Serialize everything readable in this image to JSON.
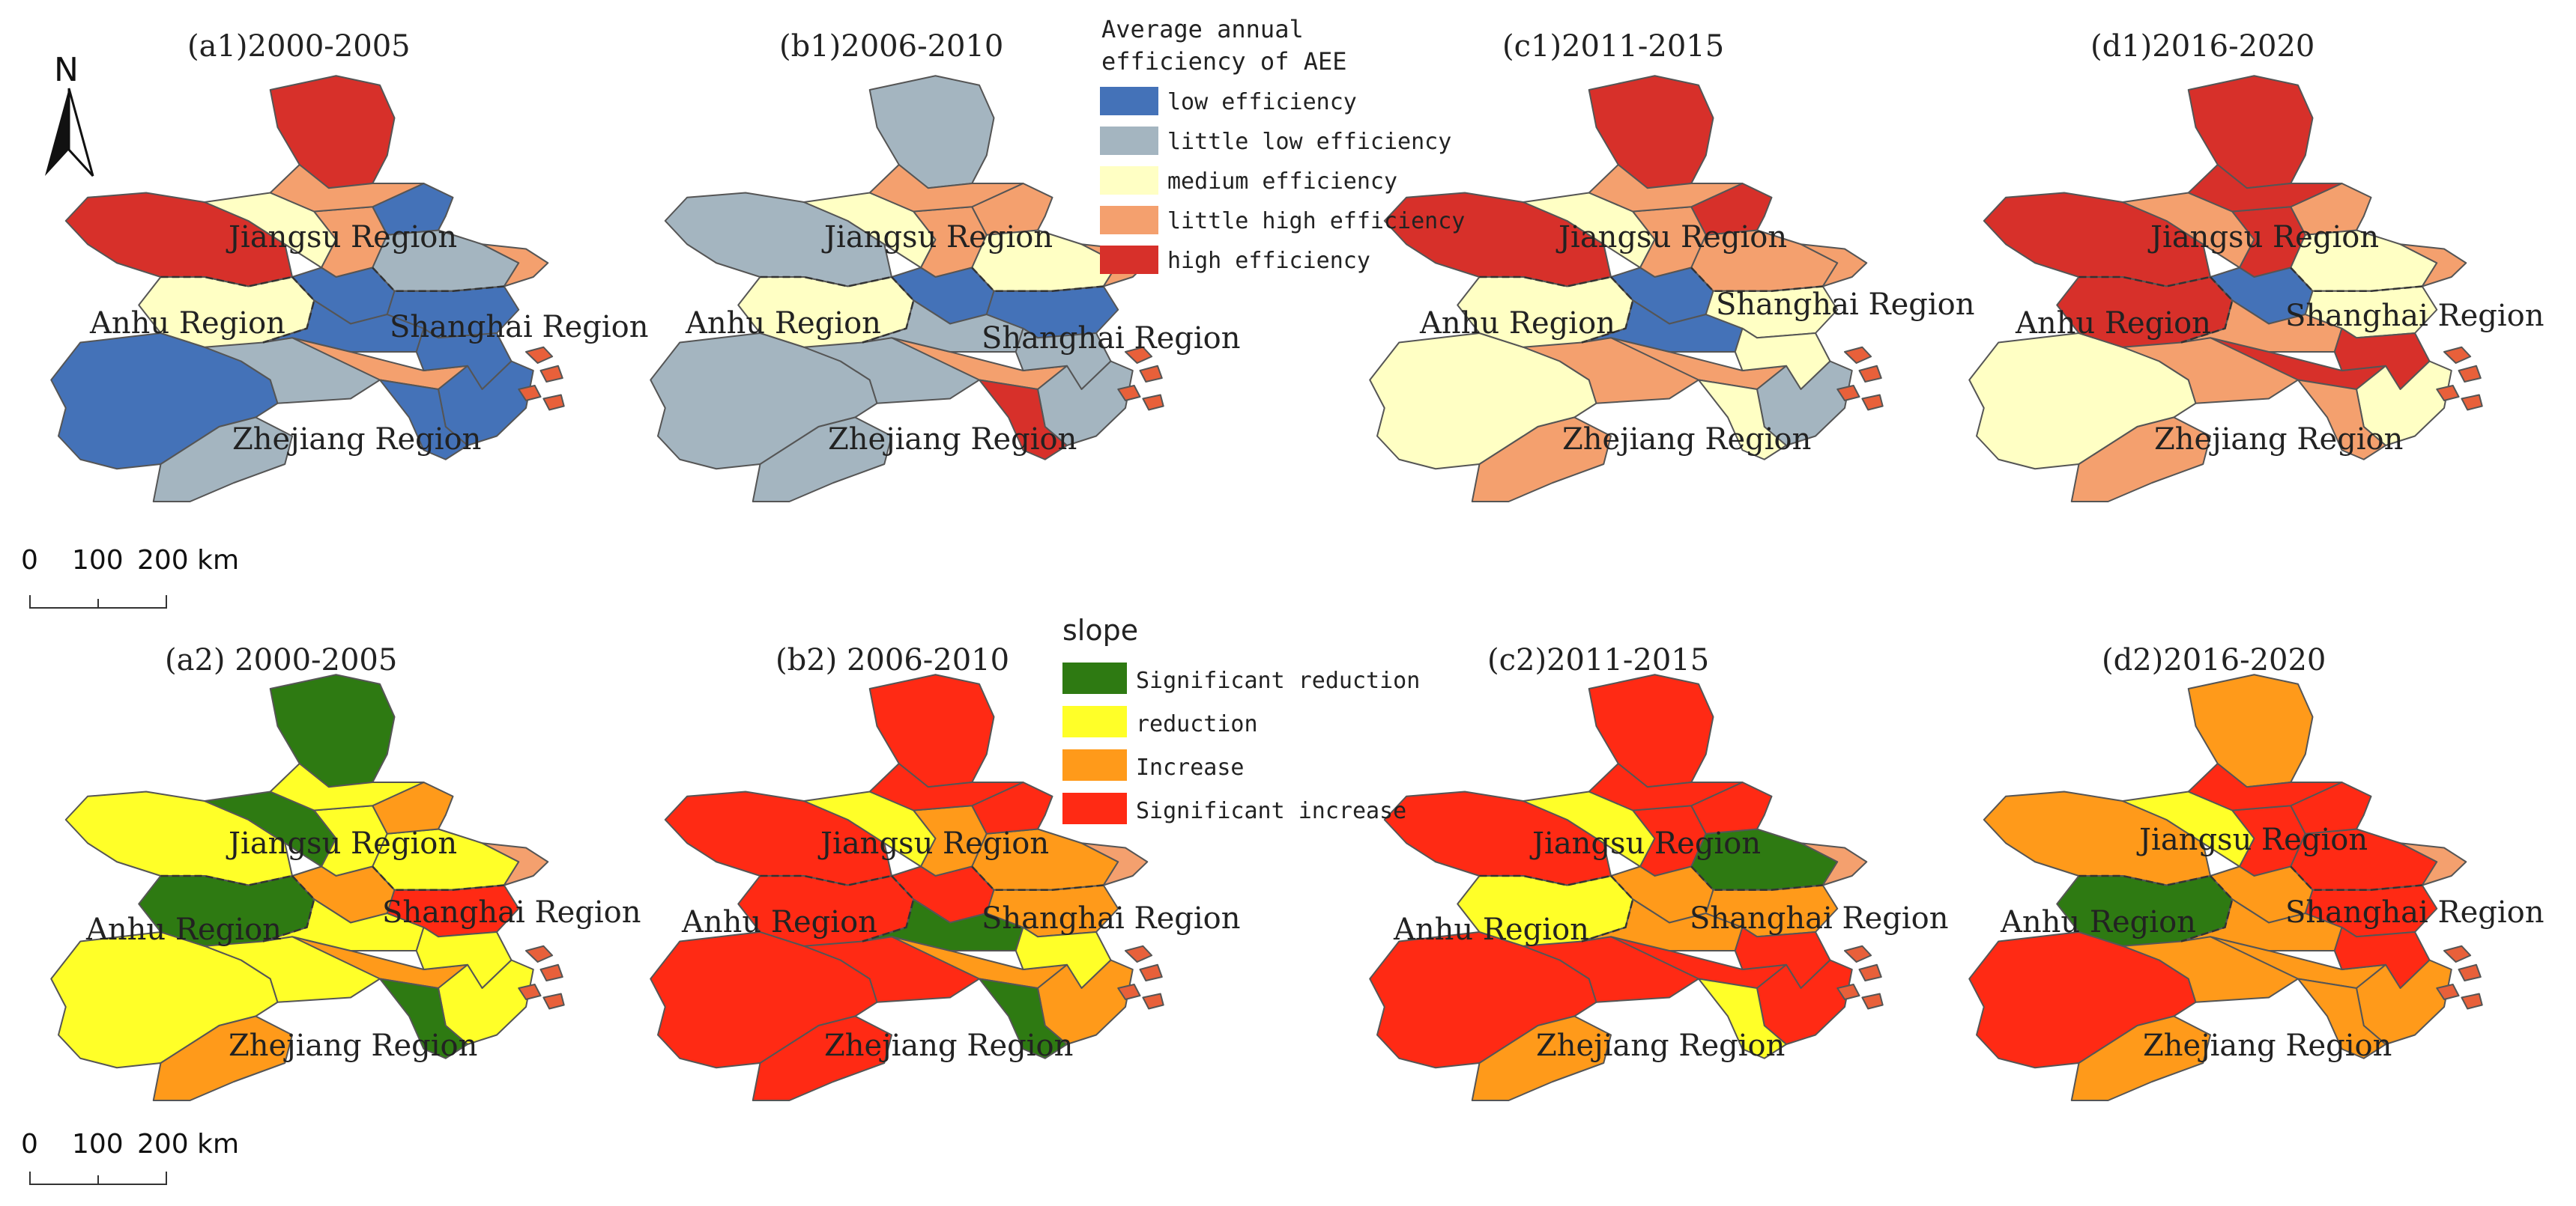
{
  "row1": {
    "panels": [
      {
        "title": "(a1)2000-2005",
        "classes": [
          1,
          2,
          2,
          4,
          5,
          3,
          3,
          4,
          1,
          1,
          2,
          1,
          5,
          4,
          1,
          1,
          1,
          1
        ]
      },
      {
        "title": "(b1)2006-2010",
        "classes": [
          2,
          2,
          2,
          4,
          2,
          3,
          3,
          4,
          1,
          2,
          3,
          4,
          2,
          4,
          1,
          2,
          2,
          5
        ]
      },
      {
        "title": "(c1)2011-2015",
        "classes": [
          3,
          4,
          4,
          4,
          5,
          3,
          3,
          4,
          1,
          1,
          4,
          5,
          5,
          4,
          3,
          3,
          2,
          3
        ]
      },
      {
        "title": "(d1)2016-2020",
        "classes": [
          3,
          4,
          4,
          5,
          5,
          4,
          5,
          5,
          1,
          4,
          3,
          4,
          5,
          5,
          3,
          5,
          3,
          4
        ]
      }
    ],
    "legend": {
      "title_lines": [
        "Average annual",
        "efficiency of AEE"
      ],
      "items": [
        {
          "label": "low efficiency",
          "color": "#4472b8"
        },
        {
          "label": "little low efficiency",
          "color": "#a4b5c0"
        },
        {
          "label": "medium efficiency",
          "color": "#ffffc4"
        },
        {
          "label": "little high efficiency",
          "color": "#f4a06e"
        },
        {
          "label": "high efficiency",
          "color": "#d7302a"
        }
      ]
    },
    "scalebar": {
      "label_0": "0",
      "label_100": "100",
      "label_200": "200 km"
    }
  },
  "row2": {
    "panels": [
      {
        "title": "(a2) 2000-2005",
        "classes": [
          2,
          2,
          3,
          3,
          2,
          1,
          1,
          2,
          3,
          2,
          2,
          3,
          1,
          2,
          4,
          2,
          2,
          1
        ]
      },
      {
        "title": "(b2) 2006-2010",
        "classes": [
          4,
          4,
          4,
          3,
          4,
          2,
          4,
          3,
          4,
          1,
          3,
          4,
          4,
          4,
          3,
          2,
          3,
          1
        ]
      },
      {
        "title": "(c2)2011-2015",
        "classes": [
          4,
          4,
          3,
          4,
          4,
          2,
          2,
          4,
          3,
          3,
          1,
          4,
          4,
          4,
          3,
          4,
          4,
          2
        ]
      },
      {
        "title": "(d2)2016-2020",
        "classes": [
          4,
          3,
          3,
          3,
          3,
          2,
          1,
          4,
          3,
          3,
          4,
          4,
          3,
          4,
          4,
          4,
          3,
          3
        ]
      }
    ],
    "legend": {
      "title": "slope",
      "items": [
        {
          "label": "Significant reduction",
          "color": "#2e7a12"
        },
        {
          "label": "reduction",
          "color": "#ffff28"
        },
        {
          "label": "Increase",
          "color": "#ff9a1a"
        },
        {
          "label": "Significant increase",
          "color": "#ff2a14"
        }
      ]
    },
    "scalebar": {
      "label_0": "0",
      "label_100": "100",
      "label_200": "200 km"
    }
  },
  "region_labels": [
    "Jiangsu Region",
    "Anhu Region",
    "Shanghai Region",
    "Zhejiang Region"
  ],
  "north_arrow": "N",
  "colors": {
    "shanghai_small": "#f4a06e",
    "islands": "#e8603a"
  }
}
